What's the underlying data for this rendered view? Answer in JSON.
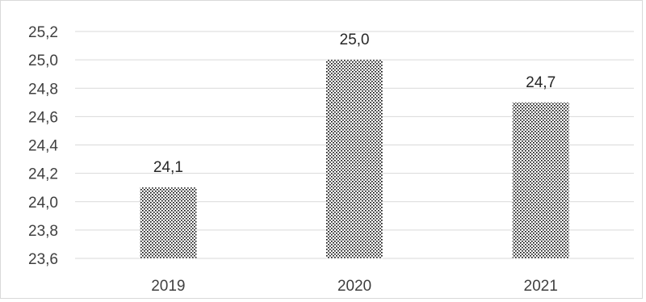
{
  "chart_data": {
    "type": "bar",
    "title": "",
    "xlabel": "",
    "ylabel": "",
    "categories": [
      "2019",
      "2020",
      "2021"
    ],
    "values": [
      24.1,
      25.0,
      24.7
    ],
    "value_labels": [
      "24,1",
      "25,0",
      "24,7"
    ],
    "ylim": [
      23.6,
      25.2
    ],
    "y_ticks": [
      23.6,
      23.8,
      24.0,
      24.2,
      24.4,
      24.6,
      24.8,
      25.0,
      25.2
    ],
    "y_tick_labels": [
      "23,6",
      "23,8",
      "24,0",
      "24,2",
      "24,4",
      "24,6",
      "24,8",
      "25,0",
      "25,2"
    ],
    "grid": true,
    "legend": "none",
    "bar_fill": "dotted pattern",
    "colors": {
      "bar_dots": "#000000",
      "gridline": "#d9d9d9",
      "text": "#404040",
      "frame": "#d9d9d9"
    }
  }
}
